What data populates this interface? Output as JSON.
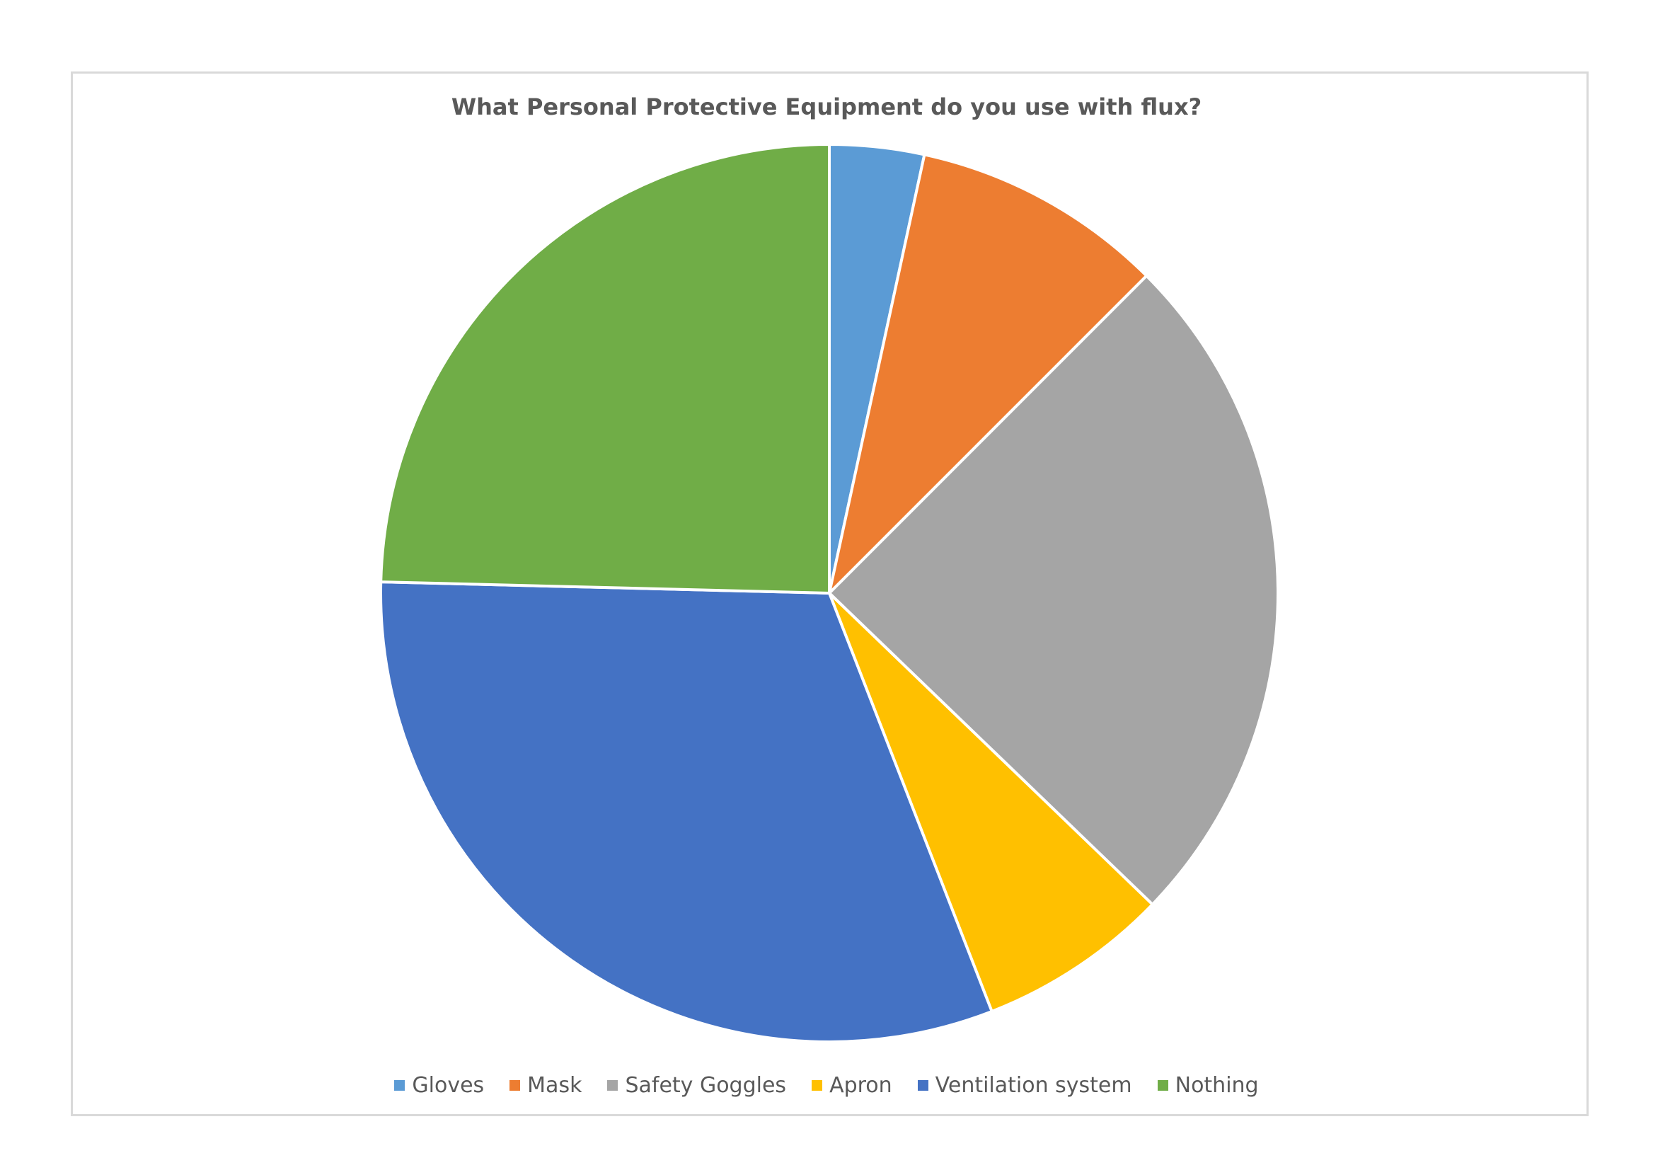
{
  "chart_data": {
    "type": "pie",
    "title": "What Personal Protective Equipment do you use with flux?",
    "categories": [
      "Gloves",
      "Mask",
      "Safety Goggles",
      "Apron",
      "Ventilation system",
      "Nothing"
    ],
    "values": [
      3.4,
      9.1,
      24.7,
      6.9,
      31.3,
      24.6
    ],
    "colors": [
      "#5b9bd5",
      "#ed7d31",
      "#a5a5a5",
      "#ffc000",
      "#4472c4",
      "#70ad47"
    ],
    "start_angle_deg": 0,
    "direction": "clockwise",
    "legend_position": "bottom"
  }
}
